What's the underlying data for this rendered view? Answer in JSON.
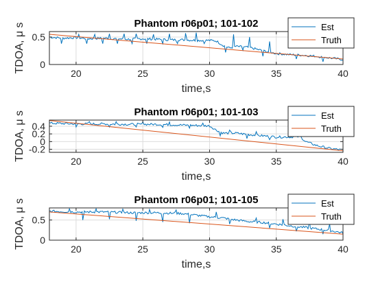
{
  "chart_data": [
    {
      "type": "line",
      "title": "Phantom r06p01; 101-102",
      "xlabel": "time,s",
      "ylabel": "TDOA, μ s",
      "xlim": [
        18,
        40
      ],
      "ylim": [
        0,
        0.6
      ],
      "xticks": [
        20,
        25,
        30,
        35,
        40
      ],
      "yticks": [
        0,
        0.5
      ],
      "grid": true,
      "legend": "top-right",
      "series": [
        {
          "name": "Est",
          "color": "#0072BD",
          "noisy": true,
          "x": [
            18,
            19,
            20,
            21,
            22,
            23,
            24,
            25,
            26,
            27,
            28,
            29,
            30,
            30.5,
            31,
            31.5,
            32,
            33,
            34,
            35,
            36,
            37,
            38,
            39,
            40
          ],
          "y": [
            0.5,
            0.48,
            0.49,
            0.47,
            0.48,
            0.47,
            0.46,
            0.47,
            0.46,
            0.45,
            0.45,
            0.44,
            0.44,
            0.43,
            0.35,
            0.3,
            0.33,
            0.31,
            0.25,
            0.2,
            0.18,
            0.17,
            0.15,
            0.12,
            0.09
          ],
          "spikes_up": [
            [
              20.2,
              0.55
            ],
            [
              21.4,
              0.55
            ],
            [
              22.5,
              0.56
            ],
            [
              23.6,
              0.56
            ],
            [
              24.5,
              0.56
            ],
            [
              25.8,
              0.55
            ],
            [
              27.0,
              0.56
            ],
            [
              28.2,
              0.57
            ],
            [
              29.0,
              0.58
            ],
            [
              31.8,
              0.55
            ],
            [
              33.0,
              0.5
            ],
            [
              34.5,
              0.42
            ]
          ],
          "spikes_down": [
            [
              18.9,
              0.38
            ],
            [
              20.8,
              0.38
            ],
            [
              22.0,
              0.38
            ],
            [
              23.1,
              0.38
            ],
            [
              24.2,
              0.38
            ],
            [
              25.3,
              0.38
            ],
            [
              26.5,
              0.38
            ],
            [
              27.6,
              0.38
            ],
            [
              29.6,
              0.38
            ],
            [
              31.2,
              0.22
            ],
            [
              32.5,
              0.26
            ],
            [
              34.0,
              0.15
            ],
            [
              36.5,
              0.1
            ],
            [
              38.5,
              0.05
            ]
          ]
        },
        {
          "name": "Truth",
          "color": "#D95319",
          "noisy": false,
          "x": [
            18,
            40
          ],
          "y": [
            0.55,
            0.1
          ]
        }
      ]
    },
    {
      "type": "line",
      "title": "Phantom r06p01; 101-103",
      "xlabel": "time,s",
      "ylabel": "TDOA, μ s",
      "xlim": [
        18,
        40
      ],
      "ylim": [
        -0.28,
        0.56
      ],
      "xticks": [
        20,
        25,
        30,
        35,
        40
      ],
      "yticks": [
        -0.2,
        0,
        0.2,
        0.4
      ],
      "grid": true,
      "legend": "top-right",
      "series": [
        {
          "name": "Est",
          "color": "#0072BD",
          "noisy": true,
          "x": [
            18,
            20,
            22,
            24,
            26,
            28,
            29,
            30,
            30.5,
            31,
            32,
            33,
            34,
            35,
            36,
            36.8,
            37.2,
            38,
            39,
            40
          ],
          "y": [
            0.48,
            0.46,
            0.46,
            0.45,
            0.45,
            0.43,
            0.42,
            0.41,
            0.3,
            0.22,
            0.22,
            0.18,
            0.15,
            0.12,
            0.12,
            0.13,
            0.0,
            -0.1,
            -0.18,
            -0.22
          ],
          "spikes_up": [
            [
              21.0,
              0.52
            ],
            [
              23.0,
              0.52
            ],
            [
              25.0,
              0.51
            ],
            [
              27.0,
              0.51
            ],
            [
              29.5,
              0.48
            ],
            [
              31.5,
              0.3
            ],
            [
              33.5,
              0.26
            ]
          ],
          "spikes_down": [
            [
              20.0,
              0.38
            ],
            [
              22.5,
              0.38
            ],
            [
              24.5,
              0.38
            ],
            [
              26.5,
              0.37
            ],
            [
              28.5,
              0.35
            ],
            [
              30.8,
              0.15
            ],
            [
              32.8,
              0.08
            ],
            [
              34.5,
              0.05
            ]
          ]
        },
        {
          "name": "Truth",
          "color": "#D95319",
          "noisy": false,
          "x": [
            18,
            40
          ],
          "y": [
            0.55,
            -0.24
          ]
        }
      ]
    },
    {
      "type": "line",
      "title": "Phantom r06p01; 101-105",
      "xlabel": "time,s",
      "ylabel": "TDOA, μ s",
      "xlim": [
        18,
        40
      ],
      "ylim": [
        0,
        0.8
      ],
      "xticks": [
        20,
        25,
        30,
        35,
        40
      ],
      "yticks": [
        0,
        0.5
      ],
      "grid": true,
      "legend": "top-right",
      "series": [
        {
          "name": "Est",
          "color": "#0072BD",
          "noisy": true,
          "x": [
            18,
            20,
            22,
            24,
            26,
            28,
            29,
            30,
            31,
            32,
            33,
            34,
            35,
            36,
            37,
            38,
            39,
            40
          ],
          "y": [
            0.72,
            0.7,
            0.7,
            0.68,
            0.68,
            0.66,
            0.62,
            0.58,
            0.55,
            0.5,
            0.46,
            0.44,
            0.4,
            0.36,
            0.32,
            0.28,
            0.24,
            0.18
          ],
          "spikes_up": [
            [
              19.5,
              0.78
            ],
            [
              21.5,
              0.78
            ],
            [
              23.5,
              0.77
            ],
            [
              25.5,
              0.76
            ],
            [
              27.5,
              0.75
            ],
            [
              30.5,
              0.7
            ],
            [
              33.5,
              0.55
            ],
            [
              35.5,
              0.52
            ],
            [
              37.5,
              0.48
            ],
            [
              39.0,
              0.4
            ]
          ],
          "spikes_down": [
            [
              20.5,
              0.5
            ],
            [
              22.5,
              0.52
            ],
            [
              24.5,
              0.48
            ],
            [
              26.5,
              0.45
            ],
            [
              28.5,
              0.42
            ],
            [
              31.5,
              0.4
            ],
            [
              34.5,
              0.3
            ],
            [
              36.5,
              0.22
            ],
            [
              38.5,
              0.15
            ]
          ]
        },
        {
          "name": "Truth",
          "color": "#D95319",
          "noisy": false,
          "x": [
            18,
            40
          ],
          "y": [
            0.7,
            0.15
          ]
        }
      ]
    }
  ]
}
